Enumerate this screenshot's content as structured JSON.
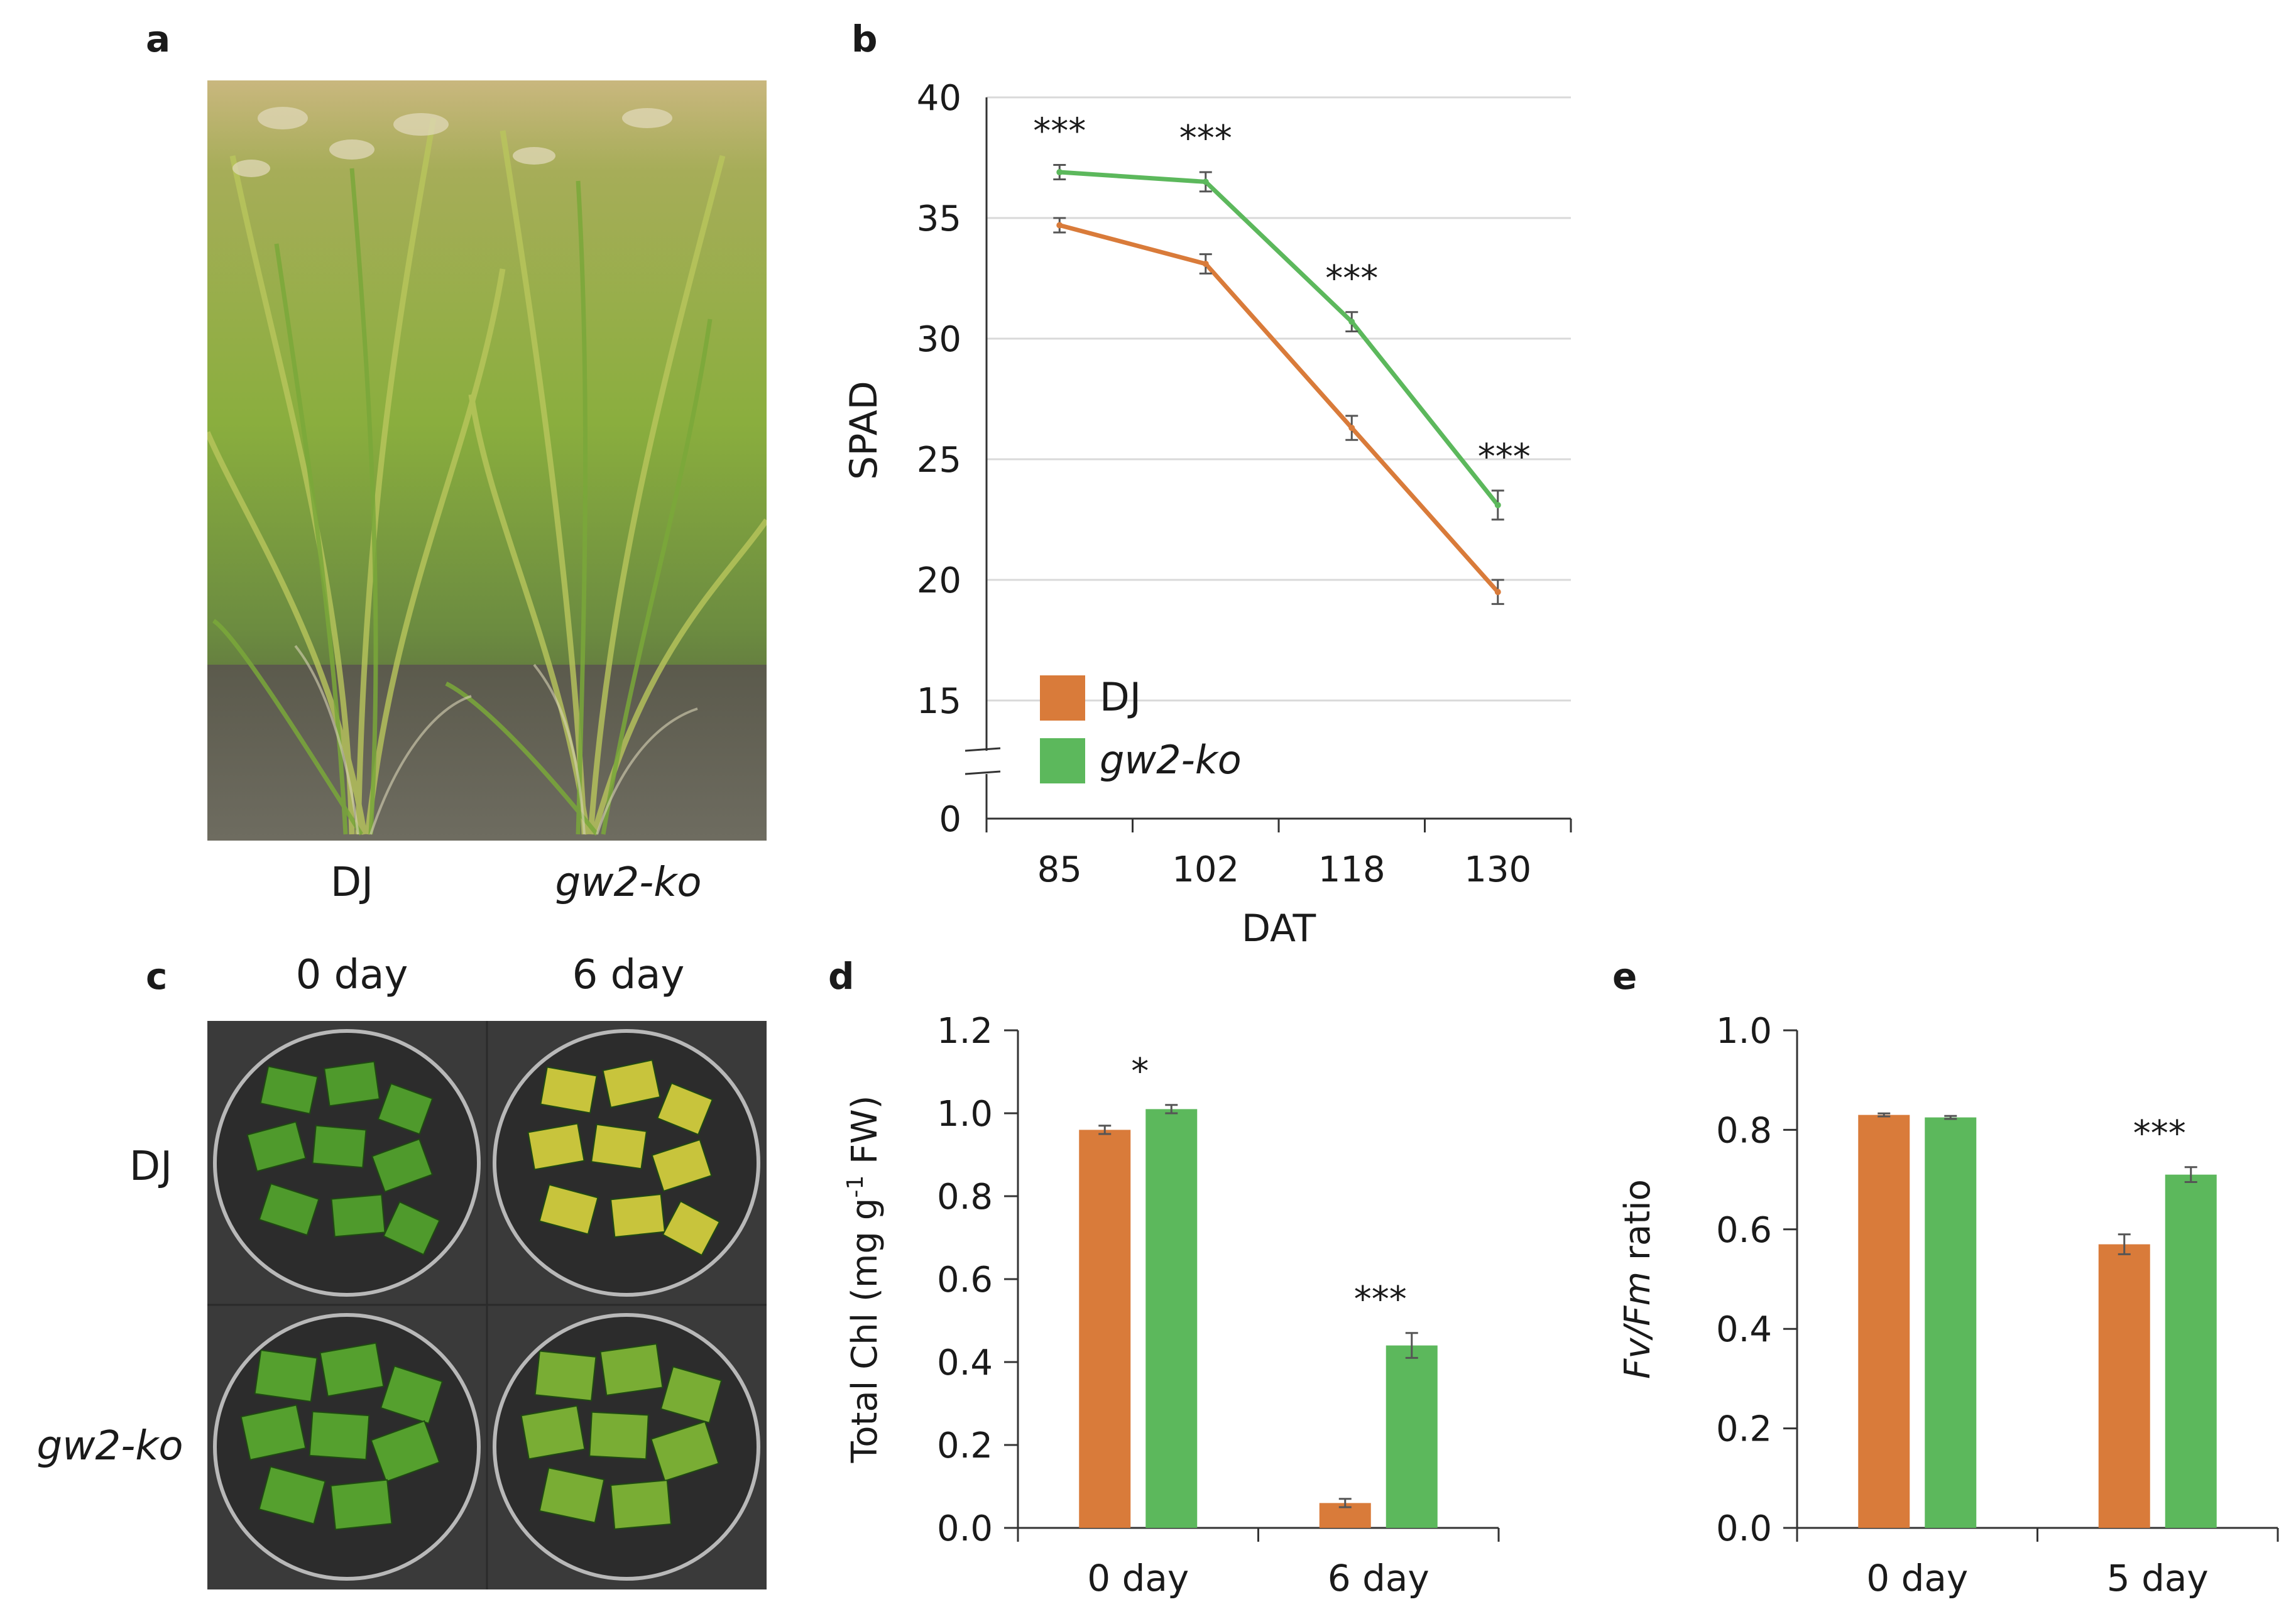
{
  "panels": {
    "a": {
      "label": "a",
      "captions": [
        "DJ",
        "gw2-ko"
      ]
    },
    "c": {
      "label": "c",
      "col_labels": [
        "0 day",
        "6 day"
      ],
      "row_labels": [
        "DJ",
        "gw2-ko"
      ]
    }
  },
  "colors": {
    "dj": "#D97B3A",
    "gw2": "#5CB85C",
    "grid": "#d9d9d9",
    "axis": "#333333"
  },
  "chart_data": [
    {
      "id": "b",
      "panel_label": "b",
      "type": "line",
      "x": [
        85,
        102,
        118,
        130
      ],
      "x_tick_labels": [
        "85",
        "102",
        "118",
        "130"
      ],
      "xlabel": "DAT",
      "ylabel": "SPAD",
      "ylim": [
        15,
        40
      ],
      "y_ticks": [
        "15",
        "20",
        "25",
        "30",
        "35",
        "40"
      ],
      "y_break_tick": "0",
      "grid": true,
      "legend": "bottom-left",
      "series": [
        {
          "name": "DJ",
          "values": [
            34.7,
            33.1,
            26.3,
            19.5
          ],
          "errors": [
            0.3,
            0.4,
            0.5,
            0.5
          ]
        },
        {
          "name": "gw2-ko",
          "values": [
            36.9,
            36.5,
            30.7,
            23.1
          ],
          "errors": [
            0.3,
            0.4,
            0.4,
            0.6
          ]
        }
      ],
      "annotations": [
        "***",
        "***",
        "***",
        "***"
      ]
    },
    {
      "id": "d",
      "panel_label": "d",
      "type": "bar",
      "categories": [
        "0 day",
        "6 day"
      ],
      "ylabel_pre": "Total Chl (mg g",
      "ylabel_sup": "-1",
      "ylabel_post": " FW)",
      "ylim": [
        0,
        1.2
      ],
      "y_ticks": [
        "0.0",
        "0.2",
        "0.4",
        "0.6",
        "0.8",
        "1.0",
        "1.2"
      ],
      "series": [
        {
          "name": "DJ",
          "values": [
            0.96,
            0.06
          ],
          "errors": [
            0.01,
            0.01
          ]
        },
        {
          "name": "gw2-ko",
          "values": [
            1.01,
            0.44
          ],
          "errors": [
            0.01,
            0.03
          ]
        }
      ],
      "annotations": [
        "*",
        "***"
      ]
    },
    {
      "id": "e",
      "panel_label": "e",
      "type": "bar",
      "categories": [
        "0 day",
        "5 day"
      ],
      "ylabel_italic": "Fv/Fm",
      "ylabel_post": " ratio",
      "ylim": [
        0,
        1.0
      ],
      "y_ticks": [
        "0.0",
        "0.2",
        "0.4",
        "0.6",
        "0.8",
        "1.0"
      ],
      "series": [
        {
          "name": "DJ",
          "values": [
            0.83,
            0.57
          ],
          "errors": [
            0.003,
            0.02
          ]
        },
        {
          "name": "gw2-ko",
          "values": [
            0.825,
            0.71
          ],
          "errors": [
            0.003,
            0.015
          ]
        }
      ],
      "annotations": [
        "",
        "***"
      ]
    }
  ]
}
